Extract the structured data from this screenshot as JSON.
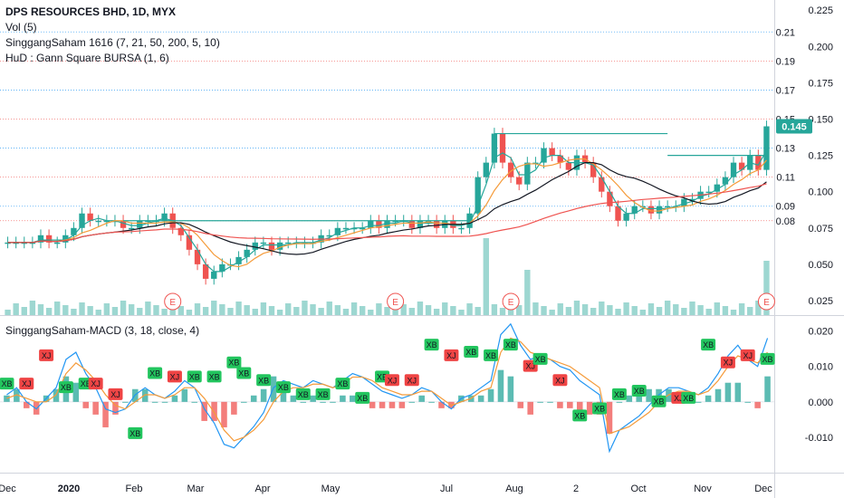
{
  "header": {
    "title": "DPS RESOURCES BHD, 1D, MYX",
    "indicators": [
      "Vol (5)",
      "SinggangSaham 1616 (7, 21, 50, 200, 5, 10)",
      "HuD : Gann Square BURSA (1, 6)"
    ],
    "macd_label": "SinggangSaham-MACD (3, 18, close, 4)"
  },
  "colors": {
    "up": "#26a69a",
    "down": "#ef5350",
    "ma_fast": "#26a69a",
    "ma_mid": "#f59b3a",
    "ma_slow": "#131722",
    "ma_long": "#ef5350",
    "gann_red": "#ef5350",
    "gann_blue": "#2196f3",
    "macd_line": "#2196f3",
    "signal_line": "#f59b3a",
    "grid": "#e0e3eb"
  },
  "chart_data": [
    {
      "type": "candlestick",
      "panel": "price",
      "y_ticks": [
        "0.025",
        "0.050",
        "0.075",
        "0.100",
        "0.125",
        "0.150",
        "0.175",
        "0.200",
        "0.225"
      ],
      "ylim": [
        0.015,
        0.232
      ],
      "x_ticks": [
        "Dec",
        "2020",
        "Feb",
        "Mar",
        "Apr",
        "May",
        "Jul",
        "Aug",
        "2",
        "Oct",
        "Nov",
        "Dec"
      ],
      "last_price": "0.145",
      "gann_levels": [
        {
          "label": "0.21",
          "value": 0.21,
          "color": "blue"
        },
        {
          "label": "0.19",
          "value": 0.19,
          "color": "red"
        },
        {
          "label": "0.17",
          "value": 0.17,
          "color": "blue"
        },
        {
          "label": "0.15",
          "value": 0.15,
          "color": "red"
        },
        {
          "label": "0.13",
          "value": 0.13,
          "color": "blue"
        },
        {
          "label": "0.11",
          "value": 0.11,
          "color": "red"
        },
        {
          "label": "0.09",
          "value": 0.09,
          "color": "blue"
        },
        {
          "label": "0.08",
          "value": 0.08,
          "color": "red"
        }
      ],
      "close_series": [
        0.065,
        0.065,
        0.065,
        0.065,
        0.07,
        0.065,
        0.065,
        0.07,
        0.075,
        0.085,
        0.08,
        0.08,
        0.08,
        0.08,
        0.075,
        0.075,
        0.08,
        0.08,
        0.08,
        0.085,
        0.075,
        0.07,
        0.06,
        0.05,
        0.04,
        0.045,
        0.05,
        0.05,
        0.055,
        0.06,
        0.065,
        0.065,
        0.06,
        0.065,
        0.065,
        0.065,
        0.065,
        0.065,
        0.07,
        0.07,
        0.075,
        0.075,
        0.075,
        0.075,
        0.08,
        0.075,
        0.08,
        0.08,
        0.08,
        0.075,
        0.08,
        0.08,
        0.075,
        0.08,
        0.075,
        0.075,
        0.085,
        0.11,
        0.12,
        0.14,
        0.12,
        0.11,
        0.105,
        0.12,
        0.12,
        0.13,
        0.125,
        0.12,
        0.115,
        0.125,
        0.12,
        0.11,
        0.1,
        0.09,
        0.08,
        0.085,
        0.09,
        0.09,
        0.085,
        0.09,
        0.09,
        0.09,
        0.095,
        0.095,
        0.1,
        0.1,
        0.105,
        0.11,
        0.12,
        0.115,
        0.125,
        0.115,
        0.145
      ],
      "volume_events": [
        "E",
        "E",
        "E",
        "E"
      ],
      "resistance_lines": [
        0.08,
        0.14,
        0.125
      ]
    },
    {
      "type": "line",
      "panel": "macd",
      "y_ticks": [
        "0.020",
        "0.010",
        "0.000",
        "-0.010"
      ],
      "ylim": [
        -0.02,
        0.024
      ],
      "series": [
        {
          "values": [
            0.002,
            0.004,
            0.0,
            -0.002,
            0.001,
            0.004,
            0.012,
            0.014,
            0.008,
            0.004,
            -0.002,
            -0.003,
            -0.002,
            0.002,
            0.004,
            0.002,
            0.001,
            0.003,
            0.006,
            0.004,
            -0.002,
            -0.006,
            -0.012,
            -0.013,
            -0.01,
            -0.007,
            -0.003,
            0.004,
            0.006,
            0.005,
            0.004,
            0.006,
            0.005,
            0.004,
            0.006,
            0.008,
            0.007,
            0.005,
            0.003,
            0.002,
            0.001,
            0.002,
            0.004,
            0.003,
            0.0,
            -0.002,
            0.001,
            0.002,
            0.004,
            0.006,
            0.019,
            0.022,
            0.016,
            0.012,
            0.013,
            0.012,
            0.01,
            0.009,
            0.006,
            0.004,
            0.002,
            -0.014,
            -0.008,
            -0.006,
            -0.004,
            -0.001,
            0.002,
            0.004,
            0.004,
            0.003,
            0.002,
            0.004,
            0.008,
            0.013,
            0.016,
            0.012,
            0.01,
            0.018
          ]
        },
        {
          "values": [
            0.001,
            0.002,
            0.001,
            0.0,
            0.0,
            0.002,
            0.008,
            0.011,
            0.009,
            0.006,
            0.002,
            -0.001,
            -0.002,
            0.0,
            0.002,
            0.002,
            0.001,
            0.002,
            0.004,
            0.004,
            0.001,
            -0.003,
            -0.008,
            -0.011,
            -0.01,
            -0.008,
            -0.005,
            0.0,
            0.003,
            0.004,
            0.004,
            0.005,
            0.005,
            0.004,
            0.005,
            0.007,
            0.007,
            0.006,
            0.004,
            0.003,
            0.002,
            0.002,
            0.003,
            0.003,
            0.001,
            -0.001,
            0.0,
            0.001,
            0.003,
            0.004,
            0.014,
            0.018,
            0.017,
            0.014,
            0.013,
            0.012,
            0.011,
            0.01,
            0.008,
            0.006,
            0.004,
            -0.009,
            -0.008,
            -0.007,
            -0.005,
            -0.003,
            0.0,
            0.002,
            0.003,
            0.003,
            0.002,
            0.003,
            0.006,
            0.01,
            0.013,
            0.012,
            0.011,
            0.014
          ]
        }
      ],
      "signals": [
        {
          "label": "XB",
          "value": 0.004
        },
        {
          "label": "XJ",
          "value": 0.004
        },
        {
          "label": "XJ",
          "value": 0.012
        },
        {
          "label": "XB",
          "value": 0.003
        },
        {
          "label": "XB",
          "value": 0.004
        },
        {
          "label": "XJ",
          "value": 0.004
        },
        {
          "label": "XJ",
          "value": 0.001
        },
        {
          "label": "XB",
          "value": -0.01
        },
        {
          "label": "XB",
          "value": 0.007
        },
        {
          "label": "XJ",
          "value": 0.006
        },
        {
          "label": "XB",
          "value": 0.006
        },
        {
          "label": "XB",
          "value": 0.006
        },
        {
          "label": "XB",
          "value": 0.01
        },
        {
          "label": "XB",
          "value": 0.007
        },
        {
          "label": "XB",
          "value": 0.005
        },
        {
          "label": "XB",
          "value": 0.003
        },
        {
          "label": "XB",
          "value": 0.001
        },
        {
          "label": "XB",
          "value": 0.001
        },
        {
          "label": "XB",
          "value": 0.004
        },
        {
          "label": "XB",
          "value": 0.0
        },
        {
          "label": "XB",
          "value": 0.006
        },
        {
          "label": "XJ",
          "value": 0.005
        },
        {
          "label": "XJ",
          "value": 0.005
        },
        {
          "label": "XB",
          "value": 0.015
        },
        {
          "label": "XJ",
          "value": 0.012
        },
        {
          "label": "XB",
          "value": 0.013
        },
        {
          "label": "XB",
          "value": 0.012
        },
        {
          "label": "XB",
          "value": 0.015
        },
        {
          "label": "XJ",
          "value": 0.009
        },
        {
          "label": "XB",
          "value": 0.011
        },
        {
          "label": "XJ",
          "value": 0.005
        },
        {
          "label": "XB",
          "value": -0.005
        },
        {
          "label": "XB",
          "value": -0.003
        },
        {
          "label": "XB",
          "value": 0.001
        },
        {
          "label": "XB",
          "value": 0.002
        },
        {
          "label": "XB",
          "value": -0.001
        },
        {
          "label": "XJ",
          "value": 0.0
        },
        {
          "label": "XB",
          "value": 0.0
        },
        {
          "label": "XB",
          "value": 0.015
        },
        {
          "label": "XJ",
          "value": 0.01
        },
        {
          "label": "XJ",
          "value": 0.012
        },
        {
          "label": "XB",
          "value": 0.011
        }
      ]
    }
  ]
}
